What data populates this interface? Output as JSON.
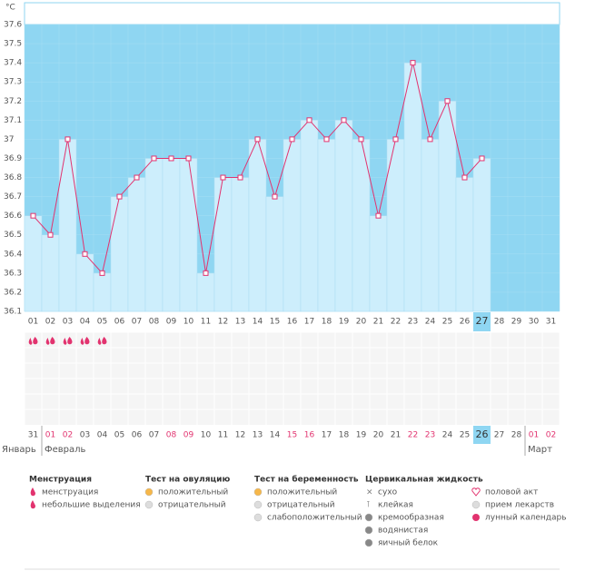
{
  "chart_data": {
    "type": "line",
    "y_unit": "°C",
    "categories": [
      "01",
      "02",
      "03",
      "04",
      "05",
      "06",
      "07",
      "08",
      "09",
      "10",
      "11",
      "12",
      "13",
      "14",
      "15",
      "16",
      "17",
      "18",
      "19",
      "20",
      "21",
      "22",
      "23",
      "24",
      "25",
      "26",
      "27",
      "28",
      "29",
      "30",
      "31"
    ],
    "values": [
      36.6,
      36.5,
      37,
      36.4,
      36.3,
      36.7,
      36.8,
      36.9,
      36.9,
      36.9,
      36.3,
      36.8,
      36.8,
      37,
      36.7,
      37,
      37.1,
      37,
      37.1,
      37,
      36.6,
      37,
      37.4,
      37,
      37.2,
      36.8,
      36.9,
      null,
      null,
      null,
      null
    ],
    "highlight": 26,
    "ylim": [
      36.1,
      37.6
    ],
    "yticks": [
      36.1,
      36.2,
      36.3,
      36.4,
      36.5,
      36.6,
      36.7,
      36.8,
      36.9,
      37,
      37.1,
      37.2,
      37.3,
      37.4,
      37.5,
      37.6
    ],
    "line_color": "#e2336f",
    "bar_color": "#cdeefc",
    "plot_color": "#8fd6f2",
    "menstruation": [
      0,
      1,
      2,
      3,
      4
    ],
    "calendar_days": [
      {
        "label": "31",
        "weekend": false
      },
      {
        "label": "01",
        "weekend": true
      },
      {
        "label": "02",
        "weekend": true
      },
      {
        "label": "03",
        "weekend": false
      },
      {
        "label": "04",
        "weekend": false
      },
      {
        "label": "05",
        "weekend": false
      },
      {
        "label": "06",
        "weekend": false
      },
      {
        "label": "07",
        "weekend": false
      },
      {
        "label": "08",
        "weekend": true
      },
      {
        "label": "09",
        "weekend": true
      },
      {
        "label": "10",
        "weekend": false
      },
      {
        "label": "11",
        "weekend": false
      },
      {
        "label": "12",
        "weekend": false
      },
      {
        "label": "13",
        "weekend": false
      },
      {
        "label": "14",
        "weekend": false
      },
      {
        "label": "15",
        "weekend": true
      },
      {
        "label": "16",
        "weekend": true
      },
      {
        "label": "17",
        "weekend": false
      },
      {
        "label": "18",
        "weekend": false
      },
      {
        "label": "19",
        "weekend": false
      },
      {
        "label": "20",
        "weekend": false
      },
      {
        "label": "21",
        "weekend": false
      },
      {
        "label": "22",
        "weekend": true
      },
      {
        "label": "23",
        "weekend": true
      },
      {
        "label": "24",
        "weekend": false
      },
      {
        "label": "25",
        "weekend": false
      },
      {
        "label": "26",
        "weekend": false
      },
      {
        "label": "27",
        "weekend": false
      },
      {
        "label": "28",
        "weekend": false
      },
      {
        "label": "01",
        "weekend": true
      },
      {
        "label": "02",
        "weekend": true
      }
    ],
    "months": [
      {
        "name": "Январь",
        "start": 0
      },
      {
        "name": "Февраль",
        "start": 1
      },
      {
        "name": "Март",
        "start": 29
      }
    ],
    "legend": [
      {
        "title": "Менструация",
        "items": [
          "менструация",
          "небольшие выделения"
        ]
      },
      {
        "title": "Тест на овуляцию",
        "items": [
          "положительный",
          "отрицательный"
        ]
      },
      {
        "title": "Тест на беременность",
        "items": [
          "положительный",
          "отрицательный",
          "слабоположительный"
        ]
      },
      {
        "title": "Цервикальная жидкость",
        "items": [
          "сухо",
          "клейкая",
          "кремообразная",
          "водянистая",
          "яичный белок"
        ]
      },
      {
        "items": [
          "половой акт",
          "прием лекарств",
          "лунный календарь"
        ]
      }
    ]
  }
}
